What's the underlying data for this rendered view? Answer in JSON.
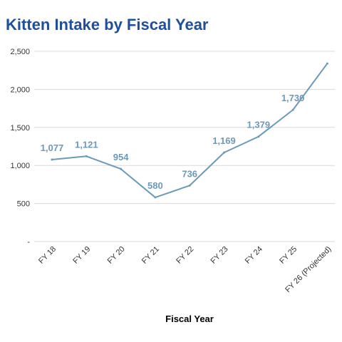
{
  "colors": {
    "title": "#1f4e9c",
    "series": "#6b9ab8",
    "data_label": "#6b9ab8",
    "grid": "#d9d9d9",
    "axis_text": "#333333"
  },
  "chart_data": {
    "type": "line",
    "title": "Kitten Intake by Fiscal Year",
    "xlabel": "Fiscal Year",
    "ylabel": "",
    "categories": [
      "FY 18",
      "FY 19",
      "FY 20",
      "FY 21",
      "FY 22",
      "FY 23",
      "FY 24",
      "FY 25",
      "FY 26 (Projected)"
    ],
    "y_tick_labels": [
      "-",
      "500",
      "1,000",
      "1,500",
      "2,000",
      "2,500"
    ],
    "ylim": [
      0,
      2500
    ],
    "grid": true,
    "legend": "none",
    "series": [
      {
        "values": [
          1077,
          1121,
          954,
          580,
          736,
          1169,
          1379,
          1730,
          2340
        ],
        "data_labels": [
          "1,077",
          "1,121",
          "954",
          "580",
          "736",
          "1,169",
          "1,379",
          "1,730",
          ""
        ]
      }
    ]
  }
}
